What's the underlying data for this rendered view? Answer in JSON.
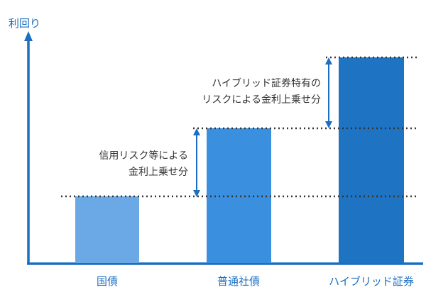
{
  "axis": {
    "y_label": "利回り"
  },
  "categories": [
    {
      "label": "国債",
      "color": "#6aa9e6"
    },
    {
      "label": "普通社債",
      "color": "#3a90df"
    },
    {
      "label": "ハイブリッド証券",
      "color": "#1e73c3"
    }
  ],
  "annotations": {
    "credit_line1": "信用リスク等による",
    "credit_line2": "金利上乗せ分",
    "hybrid_line1": "ハイブリッド証券特有の",
    "hybrid_line2": "リスクによる金利上乗せ分"
  },
  "colors": {
    "axis": "#1a6fc2",
    "label": "#1a6fc2",
    "text": "#333333",
    "arrow": "#1a6fc2",
    "dotted": "#333333"
  }
}
